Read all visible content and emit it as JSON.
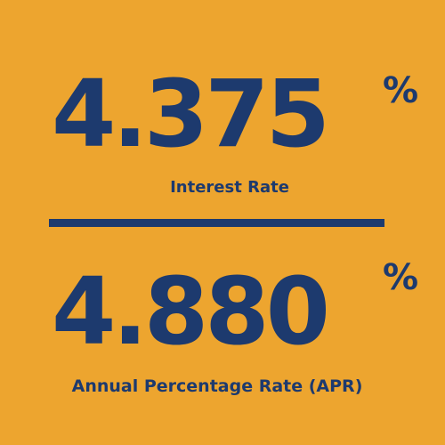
{
  "colors": {
    "background": "#EDA52F",
    "text": "#1D3A6E"
  },
  "interest": {
    "value": "4.375",
    "percent_sign": "%",
    "label": "Interest Rate"
  },
  "apr": {
    "value": "4.880",
    "percent_sign": "%",
    "label": "Annual Percentage Rate (APR)"
  }
}
